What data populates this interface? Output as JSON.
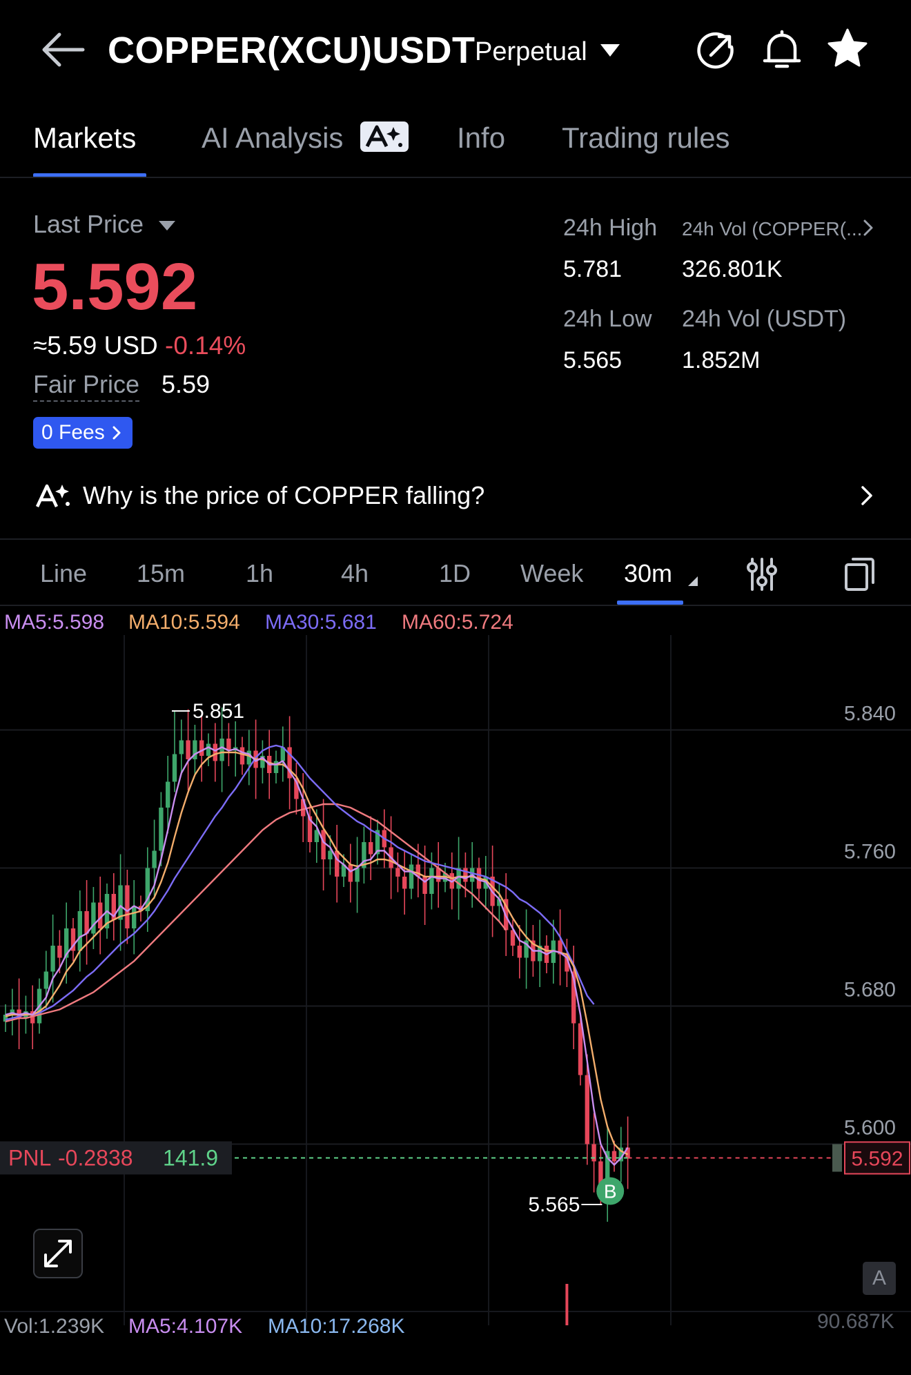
{
  "header": {
    "title": "COPPER(XCU)USDT",
    "contract_type": "Perpetual",
    "icons": [
      "back-arrow-icon",
      "share-icon",
      "bell-icon",
      "star-icon"
    ]
  },
  "tabs": [
    {
      "label": "Markets",
      "active": true
    },
    {
      "label": "AI Analysis",
      "badge": "ai-sparkle-icon"
    },
    {
      "label": "Info"
    },
    {
      "label": "Trading rules"
    }
  ],
  "price": {
    "label": "Last Price",
    "last": "5.592",
    "usd_approx": "≈5.59 USD",
    "change_pct": "-0.14%",
    "fair_label": "Fair Price",
    "fair_value": "5.59",
    "fees_label": "0 Fees"
  },
  "stats": {
    "high_label": "24h High",
    "high_value": "5.781",
    "vol_base_label": "24h Vol (COPPER(...",
    "vol_base_value": "326.801K",
    "low_label": "24h Low",
    "low_value": "5.565",
    "vol_quote_label": "24h Vol  (USDT)",
    "vol_quote_value": "1.852M"
  },
  "ai_question": "Why is the price of COPPER falling?",
  "intervals": [
    "Line",
    "15m",
    "1h",
    "4h",
    "1D",
    "Week",
    "30m"
  ],
  "active_interval": "30m",
  "ma_legend": {
    "ma5": "MA5:5.598",
    "ma10": "MA10:5.594",
    "ma30": "MA30:5.681",
    "ma60": "MA60:5.724"
  },
  "colors": {
    "up": "#3ea66b",
    "down": "#e6475a",
    "ma5": "#c98ef0",
    "ma10": "#f4ae6c",
    "ma30": "#7c6cf6",
    "ma60": "#ef7a7f",
    "accent": "#3d6ff5"
  },
  "chart_data": {
    "type": "candlestick",
    "y_ticks": [
      "5.840",
      "5.760",
      "5.680",
      "5.600"
    ],
    "y_tick_values": [
      5.84,
      5.76,
      5.68,
      5.6
    ],
    "ylim": [
      5.543,
      5.895
    ],
    "high_label": "5.851",
    "high_value": 5.851,
    "low_label": "5.565",
    "low_value": 5.565,
    "current_price": "5.592",
    "current_price_value": 5.592,
    "pnl_label": "PNL",
    "pnl_value": "-0.2838",
    "pnl_qty": "141.9",
    "buy_marker": "B",
    "grid": true,
    "close": [
      5.675,
      5.678,
      5.673,
      5.677,
      5.67,
      5.69,
      5.7,
      5.715,
      5.708,
      5.725,
      5.712,
      5.735,
      5.722,
      5.74,
      5.725,
      5.745,
      5.73,
      5.75,
      5.725,
      5.738,
      5.735,
      5.76,
      5.77,
      5.795,
      5.81,
      5.826,
      5.834,
      5.823,
      5.834,
      5.825,
      5.832,
      5.822,
      5.835,
      5.828,
      5.83,
      5.82,
      5.828,
      5.818,
      5.825,
      5.815,
      5.822,
      5.83,
      5.812,
      5.8,
      5.79,
      5.775,
      5.782,
      5.765,
      5.77,
      5.755,
      5.762,
      5.752,
      5.76,
      5.775,
      5.768,
      5.782,
      5.772,
      5.76,
      5.755,
      5.748,
      5.762,
      5.755,
      5.745,
      5.76,
      5.752,
      5.757,
      5.748,
      5.76,
      5.752,
      5.76,
      5.748,
      5.755,
      5.738,
      5.742,
      5.724,
      5.715,
      5.708,
      5.718,
      5.706,
      5.715,
      5.705,
      5.718,
      5.71,
      5.7,
      5.67,
      5.64,
      5.6,
      5.59,
      5.57,
      5.596,
      5.59,
      5.598,
      5.592
    ],
    "ma5": [
      5.675,
      5.676,
      5.675,
      5.676,
      5.675,
      5.68,
      5.685,
      5.696,
      5.702,
      5.71,
      5.715,
      5.72,
      5.722,
      5.727,
      5.731,
      5.735,
      5.732,
      5.738,
      5.735,
      5.738,
      5.736,
      5.742,
      5.75,
      5.765,
      5.782,
      5.8,
      5.815,
      5.822,
      5.826,
      5.828,
      5.83,
      5.828,
      5.83,
      5.828,
      5.829,
      5.827,
      5.826,
      5.822,
      5.824,
      5.82,
      5.82,
      5.822,
      5.816,
      5.81,
      5.8,
      5.788,
      5.784,
      5.775,
      5.772,
      5.765,
      5.762,
      5.758,
      5.76,
      5.764,
      5.765,
      5.77,
      5.77,
      5.766,
      5.762,
      5.758,
      5.758,
      5.755,
      5.752,
      5.755,
      5.754,
      5.754,
      5.752,
      5.755,
      5.754,
      5.756,
      5.753,
      5.752,
      5.746,
      5.742,
      5.732,
      5.725,
      5.718,
      5.716,
      5.712,
      5.712,
      5.71,
      5.712,
      5.711,
      5.708,
      5.696,
      5.675,
      5.648,
      5.62,
      5.6,
      5.592,
      5.588,
      5.592,
      5.598
    ],
    "ma10": [
      5.674,
      5.675,
      5.675,
      5.675,
      5.675,
      5.677,
      5.68,
      5.686,
      5.692,
      5.7,
      5.705,
      5.712,
      5.716,
      5.72,
      5.724,
      5.728,
      5.73,
      5.732,
      5.733,
      5.734,
      5.735,
      5.738,
      5.743,
      5.752,
      5.763,
      5.778,
      5.792,
      5.804,
      5.814,
      5.82,
      5.824,
      5.826,
      5.827,
      5.827,
      5.827,
      5.826,
      5.825,
      5.823,
      5.823,
      5.821,
      5.82,
      5.82,
      5.817,
      5.813,
      5.806,
      5.797,
      5.79,
      5.783,
      5.777,
      5.77,
      5.766,
      5.762,
      5.761,
      5.762,
      5.763,
      5.765,
      5.765,
      5.764,
      5.762,
      5.76,
      5.758,
      5.757,
      5.755,
      5.755,
      5.755,
      5.755,
      5.754,
      5.755,
      5.755,
      5.755,
      5.754,
      5.753,
      5.749,
      5.745,
      5.738,
      5.731,
      5.725,
      5.72,
      5.716,
      5.714,
      5.712,
      5.712,
      5.711,
      5.71,
      5.703,
      5.69,
      5.67,
      5.648,
      5.626,
      5.61,
      5.6,
      5.596,
      5.594
    ],
    "ma30": [
      5.672,
      5.673,
      5.674,
      5.675,
      5.675,
      5.676,
      5.678,
      5.68,
      5.683,
      5.686,
      5.689,
      5.693,
      5.697,
      5.7,
      5.704,
      5.708,
      5.712,
      5.716,
      5.719,
      5.722,
      5.726,
      5.73,
      5.735,
      5.741,
      5.747,
      5.754,
      5.76,
      5.766,
      5.772,
      5.778,
      5.784,
      5.79,
      5.795,
      5.801,
      5.806,
      5.812,
      5.818,
      5.824,
      5.828,
      5.83,
      5.831,
      5.83,
      5.826,
      5.822,
      5.817,
      5.812,
      5.808,
      5.804,
      5.8,
      5.796,
      5.793,
      5.79,
      5.787,
      5.785,
      5.782,
      5.78,
      5.777,
      5.775,
      5.772,
      5.77,
      5.768,
      5.766,
      5.764,
      5.763,
      5.762,
      5.761,
      5.76,
      5.759,
      5.758,
      5.757,
      5.756,
      5.755,
      5.753,
      5.751,
      5.749,
      5.746,
      5.742,
      5.74,
      5.737,
      5.734,
      5.73,
      5.726,
      5.72,
      5.712,
      5.704,
      5.695,
      5.686,
      5.681
    ],
    "ma60": [
      5.671,
      5.672,
      5.673,
      5.673,
      5.674,
      5.675,
      5.676,
      5.677,
      5.678,
      5.68,
      5.682,
      5.684,
      5.686,
      5.688,
      5.691,
      5.694,
      5.697,
      5.7,
      5.703,
      5.706,
      5.71,
      5.714,
      5.718,
      5.722,
      5.726,
      5.73,
      5.734,
      5.738,
      5.742,
      5.746,
      5.75,
      5.754,
      5.758,
      5.762,
      5.766,
      5.77,
      5.774,
      5.778,
      5.782,
      5.785,
      5.788,
      5.79,
      5.792,
      5.793,
      5.794,
      5.795,
      5.796,
      5.797,
      5.797,
      5.797,
      5.796,
      5.795,
      5.793,
      5.791,
      5.789,
      5.787,
      5.784,
      5.781,
      5.778,
      5.775,
      5.772,
      5.769,
      5.766,
      5.763,
      5.76,
      5.757,
      5.754,
      5.751,
      5.748,
      5.745,
      5.741,
      5.737,
      5.733,
      5.729,
      5.724
    ]
  },
  "volume_legend": {
    "current": "Vol:1.239K",
    "ma5": "MA5:4.107K",
    "ma10": "MA10:17.268K",
    "max": "90.687K"
  },
  "auto_label": "A"
}
